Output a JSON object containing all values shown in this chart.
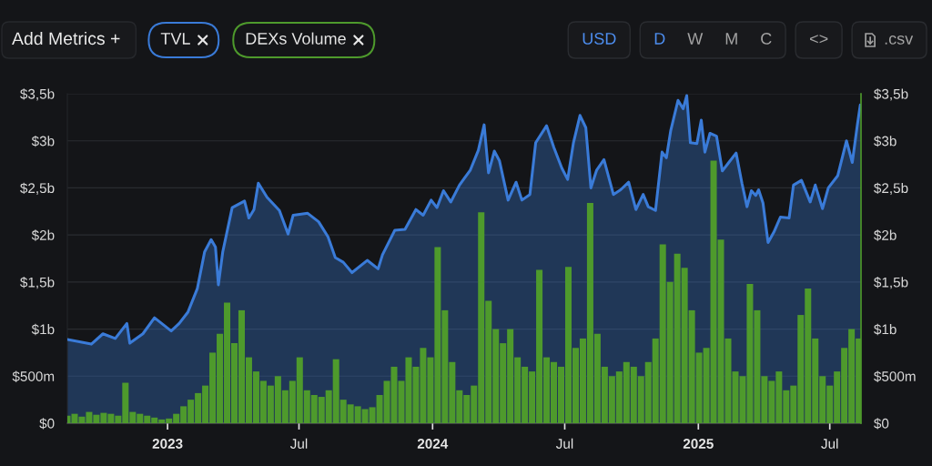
{
  "chart_data": {
    "type": "area",
    "annotations": [
      "Add Metrics +",
      "USD",
      "D",
      "W",
      "M",
      "C",
      "<>",
      ".csv"
    ],
    "legend": "top left",
    "grid": "y",
    "xlim": [
      "2022-08-16",
      "2025-08-13"
    ],
    "xticks": [
      {
        "value": "2023-01-01",
        "label": "2023"
      },
      {
        "value": "2023-07-01",
        "label": "Jul"
      },
      {
        "value": "2024-01-01",
        "label": "2024"
      },
      {
        "value": "2024-07-01",
        "label": "Jul"
      },
      {
        "value": "2025-01-01",
        "label": "2025"
      },
      {
        "value": "2025-07-01",
        "label": "Jul"
      }
    ],
    "ylim": [
      0,
      3500000000.0
    ],
    "yticks": [
      {
        "value": 0,
        "label": "$0"
      },
      {
        "value": 500000000.0,
        "label": "$500m"
      },
      {
        "value": 1000000000.0,
        "label": "$1b"
      },
      {
        "value": 1500000000.0,
        "label": "$1,5b"
      },
      {
        "value": 2000000000.0,
        "label": "$2b"
      },
      {
        "value": 2500000000.0,
        "label": "$2,5b"
      },
      {
        "value": 3000000000.0,
        "label": "$3b"
      },
      {
        "value": 3500000000.0,
        "label": "$3,5b"
      }
    ],
    "y2lim": [
      0,
      3500000000.0
    ],
    "y2ticks": [
      {
        "value": 0,
        "label": "$0"
      },
      {
        "value": 500000000.0,
        "label": "$500m"
      },
      {
        "value": 1000000000.0,
        "label": "$1b"
      },
      {
        "value": 1500000000.0,
        "label": "$1,5b"
      },
      {
        "value": 2000000000.0,
        "label": "$2b"
      },
      {
        "value": 2500000000.0,
        "label": "$2,5b"
      },
      {
        "value": 3000000000.0,
        "label": "$3b"
      },
      {
        "value": 3500000000.0,
        "label": "$3,5b"
      }
    ],
    "series": [
      {
        "name": "TVL",
        "color": "#3a7bd8",
        "x": [
          "2022-08-16",
          "2022-09-18",
          "2022-10-04",
          "2022-10-21",
          "2022-11-06",
          "2022-11-10",
          "2022-11-28",
          "2022-12-14",
          "2023-01-06",
          "2023-01-17",
          "2023-01-29",
          "2023-02-11",
          "2023-02-21",
          "2023-03-02",
          "2023-03-08",
          "2023-03-12",
          "2023-03-18",
          "2023-03-31",
          "2023-04-17",
          "2023-04-23",
          "2023-04-30",
          "2023-05-06",
          "2023-05-18",
          "2023-06-04",
          "2023-06-16",
          "2023-06-23",
          "2023-07-13",
          "2023-07-28",
          "2023-08-10",
          "2023-08-20",
          "2023-08-31",
          "2023-09-12",
          "2023-10-03",
          "2023-10-18",
          "2023-10-24",
          "2023-11-10",
          "2023-11-24",
          "2023-12-09",
          "2023-12-19",
          "2023-12-30",
          "2024-01-07",
          "2024-01-16",
          "2024-01-26",
          "2024-02-07",
          "2024-02-22",
          "2024-03-04",
          "2024-03-12",
          "2024-03-18",
          "2024-03-26",
          "2024-04-02",
          "2024-04-14",
          "2024-04-25",
          "2024-05-03",
          "2024-05-14",
          "2024-05-22",
          "2024-06-06",
          "2024-06-16",
          "2024-06-27",
          "2024-07-05",
          "2024-07-13",
          "2024-07-22",
          "2024-07-30",
          "2024-08-06",
          "2024-08-14",
          "2024-08-24",
          "2024-09-06",
          "2024-09-16",
          "2024-09-27",
          "2024-10-07",
          "2024-10-17",
          "2024-10-24",
          "2024-11-03",
          "2024-11-12",
          "2024-11-18",
          "2024-11-24",
          "2024-12-04",
          "2024-12-11",
          "2024-12-16",
          "2024-12-21",
          "2024-12-30",
          "2025-01-05",
          "2025-01-10",
          "2025-01-17",
          "2025-01-26",
          "2025-02-03",
          "2025-02-11",
          "2025-02-22",
          "2025-03-02",
          "2025-03-09",
          "2025-03-15",
          "2025-03-21",
          "2025-03-25",
          "2025-03-31",
          "2025-04-07",
          "2025-04-15",
          "2025-04-24",
          "2025-05-06",
          "2025-05-12",
          "2025-05-23",
          "2025-06-04",
          "2025-06-11",
          "2025-06-21",
          "2025-06-29",
          "2025-07-12",
          "2025-07-24",
          "2025-08-01",
          "2025-08-08",
          "2025-08-12"
        ],
        "values": [
          890000000.0,
          840000000.0,
          950000000.0,
          900000000.0,
          1060000000.0,
          850000000.0,
          950000000.0,
          1120000000.0,
          980000000.0,
          1060000000.0,
          1180000000.0,
          1430000000.0,
          1820000000.0,
          1950000000.0,
          1870000000.0,
          1470000000.0,
          1820000000.0,
          2290000000.0,
          2360000000.0,
          2180000000.0,
          2270000000.0,
          2550000000.0,
          2400000000.0,
          2260000000.0,
          2010000000.0,
          2210000000.0,
          2230000000.0,
          2140000000.0,
          1980000000.0,
          1760000000.0,
          1710000000.0,
          1600000000.0,
          1730000000.0,
          1640000000.0,
          1790000000.0,
          2050000000.0,
          2060000000.0,
          2270000000.0,
          2210000000.0,
          2370000000.0,
          2290000000.0,
          2470000000.0,
          2350000000.0,
          2530000000.0,
          2690000000.0,
          2900000000.0,
          3170000000.0,
          2660000000.0,
          2890000000.0,
          2790000000.0,
          2370000000.0,
          2560000000.0,
          2370000000.0,
          2430000000.0,
          2980000000.0,
          3160000000.0,
          2930000000.0,
          2710000000.0,
          2590000000.0,
          2980000000.0,
          3270000000.0,
          3140000000.0,
          2500000000.0,
          2690000000.0,
          2800000000.0,
          2430000000.0,
          2480000000.0,
          2560000000.0,
          2270000000.0,
          2430000000.0,
          2300000000.0,
          2260000000.0,
          2880000000.0,
          2820000000.0,
          3110000000.0,
          3430000000.0,
          3340000000.0,
          3480000000.0,
          2980000000.0,
          2970000000.0,
          3220000000.0,
          2880000000.0,
          3080000000.0,
          3050000000.0,
          2680000000.0,
          2760000000.0,
          2870000000.0,
          2550000000.0,
          2300000000.0,
          2470000000.0,
          2420000000.0,
          2480000000.0,
          2340000000.0,
          1920000000.0,
          2030000000.0,
          2190000000.0,
          2180000000.0,
          2530000000.0,
          2580000000.0,
          2350000000.0,
          2530000000.0,
          2280000000.0,
          2500000000.0,
          2630000000.0,
          3000000000.0,
          2770000000.0,
          3170000000.0,
          3380000000.0
        ]
      },
      {
        "name": "DEXs Volume",
        "type": "bar",
        "axis": "y2",
        "color": "#4e9a2c",
        "x": [
          "2022-08-16",
          "2022-08-26",
          "2022-09-05",
          "2022-09-15",
          "2022-09-25",
          "2022-10-05",
          "2022-10-15",
          "2022-10-25",
          "2022-11-04",
          "2022-11-14",
          "2022-11-24",
          "2022-12-04",
          "2022-12-14",
          "2022-12-24",
          "2023-01-03",
          "2023-01-13",
          "2023-01-23",
          "2023-02-02",
          "2023-02-12",
          "2023-02-22",
          "2023-03-04",
          "2023-03-14",
          "2023-03-24",
          "2023-04-03",
          "2023-04-13",
          "2023-04-23",
          "2023-05-03",
          "2023-05-13",
          "2023-05-23",
          "2023-06-02",
          "2023-06-12",
          "2023-06-22",
          "2023-07-02",
          "2023-07-12",
          "2023-07-22",
          "2023-08-01",
          "2023-08-11",
          "2023-08-21",
          "2023-08-31",
          "2023-09-10",
          "2023-09-20",
          "2023-09-30",
          "2023-10-10",
          "2023-10-20",
          "2023-10-30",
          "2023-11-09",
          "2023-11-19",
          "2023-11-29",
          "2023-12-09",
          "2023-12-19",
          "2023-12-29",
          "2024-01-08",
          "2024-01-18",
          "2024-01-28",
          "2024-02-07",
          "2024-02-17",
          "2024-02-27",
          "2024-03-08",
          "2024-03-18",
          "2024-03-28",
          "2024-04-07",
          "2024-04-17",
          "2024-04-27",
          "2024-05-07",
          "2024-05-17",
          "2024-05-27",
          "2024-06-06",
          "2024-06-16",
          "2024-06-26",
          "2024-07-06",
          "2024-07-16",
          "2024-07-26",
          "2024-08-05",
          "2024-08-15",
          "2024-08-25",
          "2024-09-04",
          "2024-09-14",
          "2024-09-24",
          "2024-10-04",
          "2024-10-14",
          "2024-10-24",
          "2024-11-03",
          "2024-11-13",
          "2024-11-23",
          "2024-12-03",
          "2024-12-13",
          "2024-12-23",
          "2025-01-02",
          "2025-01-12",
          "2025-01-22",
          "2025-02-01",
          "2025-02-11",
          "2025-02-21",
          "2025-03-03",
          "2025-03-13",
          "2025-03-23",
          "2025-04-02",
          "2025-04-12",
          "2025-04-22",
          "2025-05-02",
          "2025-05-12",
          "2025-05-22",
          "2025-06-01",
          "2025-06-11",
          "2025-06-21",
          "2025-07-01",
          "2025-07-11",
          "2025-07-21",
          "2025-07-31",
          "2025-08-10"
        ],
        "values": [
          80000000.0,
          100000000.0,
          70000000.0,
          120000000.0,
          90000000.0,
          110000000.0,
          100000000.0,
          80000000.0,
          430000000.0,
          120000000.0,
          100000000.0,
          80000000.0,
          60000000.0,
          40000000.0,
          50000000.0,
          100000000.0,
          180000000.0,
          250000000.0,
          320000000.0,
          400000000.0,
          750000000.0,
          950000000.0,
          1280000000.0,
          850000000.0,
          1200000000.0,
          700000000.0,
          550000000.0,
          450000000.0,
          400000000.0,
          500000000.0,
          350000000.0,
          450000000.0,
          700000000.0,
          350000000.0,
          300000000.0,
          280000000.0,
          350000000.0,
          680000000.0,
          250000000.0,
          200000000.0,
          180000000.0,
          150000000.0,
          170000000.0,
          300000000.0,
          450000000.0,
          600000000.0,
          450000000.0,
          700000000.0,
          600000000.0,
          800000000.0,
          700000000.0,
          1870000000.0,
          1200000000.0,
          650000000.0,
          350000000.0,
          300000000.0,
          400000000.0,
          2240000000.0,
          1300000000.0,
          1000000000.0,
          850000000.0,
          1000000000.0,
          700000000.0,
          600000000.0,
          550000000.0,
          1630000000.0,
          700000000.0,
          650000000.0,
          600000000.0,
          1660000000.0,
          800000000.0,
          900000000.0,
          2340000000.0,
          950000000.0,
          600000000.0,
          500000000.0,
          550000000.0,
          650000000.0,
          600000000.0,
          500000000.0,
          650000000.0,
          900000000.0,
          1900000000.0,
          1500000000.0,
          1800000000.0,
          1650000000.0,
          1200000000.0,
          750000000.0,
          800000000.0,
          2790000000.0,
          1950000000.0,
          900000000.0,
          550000000.0,
          500000000.0,
          1480000000.0,
          1200000000.0,
          500000000.0,
          450000000.0,
          550000000.0,
          350000000.0,
          400000000.0,
          1150000000.0,
          1430000000.0,
          900000000.0,
          500000000.0,
          400000000.0,
          550000000.0,
          800000000.0,
          1000000000.0,
          900000000.0
        ]
      }
    ]
  }
}
